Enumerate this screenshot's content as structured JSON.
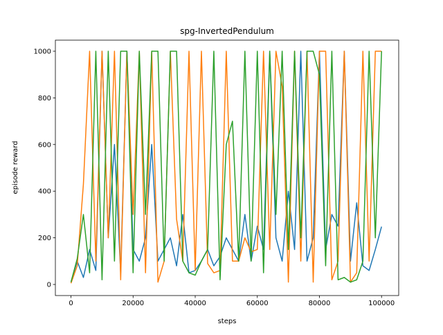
{
  "chart_data": {
    "type": "line",
    "title": "spg-InvertedPendulum",
    "x_label": "steps",
    "y_label": "episode reward",
    "x": [
      0,
      2000,
      4000,
      6000,
      8000,
      10000,
      12000,
      14000,
      16000,
      18000,
      20000,
      22000,
      24000,
      26000,
      28000,
      30000,
      32000,
      34000,
      36000,
      38000,
      40000,
      42000,
      44000,
      46000,
      48000,
      50000,
      52000,
      54000,
      56000,
      58000,
      60000,
      62000,
      64000,
      66000,
      68000,
      70000,
      72000,
      74000,
      76000,
      78000,
      80000,
      82000,
      84000,
      86000,
      88000,
      90000,
      92000,
      94000,
      96000,
      98000,
      100000
    ],
    "series": [
      {
        "color": "#1f77b4",
        "values": [
          10,
          100,
          30,
          150,
          60,
          1000,
          200,
          600,
          50,
          1000,
          150,
          100,
          200,
          600,
          100,
          150,
          200,
          80,
          300,
          50,
          60,
          100,
          150,
          80,
          120,
          200,
          150,
          100,
          300,
          100,
          250,
          150,
          1000,
          200,
          100,
          400,
          150,
          1000,
          100,
          200,
          1000,
          150,
          300,
          250,
          1000,
          100,
          350,
          80,
          60,
          150,
          248
        ]
      },
      {
        "color": "#ff7f0e",
        "values": [
          5,
          80,
          430,
          1000,
          100,
          1000,
          200,
          1000,
          20,
          1000,
          300,
          1000,
          50,
          1000,
          10,
          100,
          1000,
          280,
          100,
          1000,
          60,
          1000,
          90,
          50,
          60,
          1000,
          100,
          100,
          200,
          140,
          150,
          1000,
          150,
          1000,
          850,
          10,
          1000,
          100,
          1000,
          10,
          1000,
          1000,
          20,
          100,
          1000,
          10,
          50,
          1000,
          100,
          1000,
          1000
        ]
      },
      {
        "color": "#2ca02c",
        "values": [
          10,
          110,
          300,
          50,
          1000,
          20,
          1000,
          100,
          1000,
          1000,
          50,
          1000,
          300,
          1000,
          1000,
          100,
          1000,
          1000,
          100,
          50,
          40,
          100,
          150,
          1000,
          20,
          600,
          700,
          100,
          1000,
          100,
          1000,
          50,
          1000,
          300,
          1000,
          150,
          1000,
          200,
          1000,
          1000,
          900,
          80,
          1000,
          20,
          30,
          10,
          20,
          100,
          1000,
          200,
          1000
        ]
      }
    ],
    "xlim": [
      -5025,
      105525
    ],
    "ylim": [
      -47.5,
      1047.5
    ],
    "xticks": [
      0,
      20000,
      40000,
      60000,
      80000,
      100000
    ],
    "yticks": [
      0,
      200,
      400,
      600,
      800,
      1000
    ]
  }
}
